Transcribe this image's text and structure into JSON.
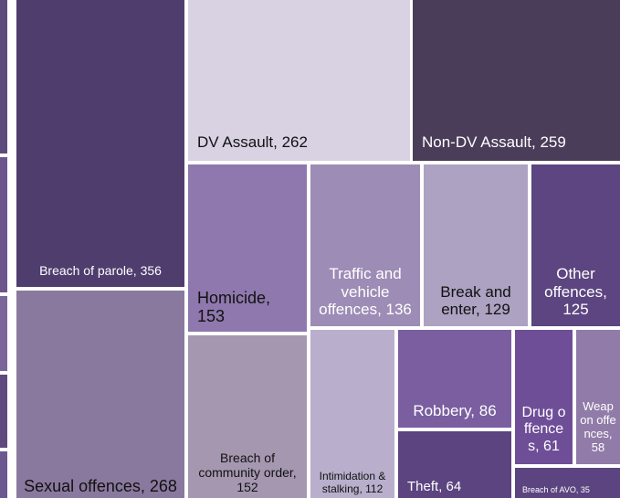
{
  "chart_data": {
    "type": "treemap",
    "value_labels": [
      "Breach of parole, 356",
      "Sexual offences, 268",
      "DV Assault, 262",
      "Non-DV Assault, 259",
      "Homicide, 153",
      "Breach of community order, 152",
      "Traffic and vehicle offences, 136",
      "Break and enter, 129",
      "Other offences, 125",
      "Intimidation & stalking, 112",
      "Robbery, 86",
      "Theft, 64",
      "Drug offences, 61",
      "Weapon offences, 58",
      "Breach of AVO, 35"
    ],
    "values": [
      356,
      268,
      262,
      259,
      153,
      152,
      136,
      129,
      125,
      112,
      86,
      64,
      61,
      58,
      35
    ],
    "colors": [
      "#4f3d6e",
      "#8a799e",
      "#d8d2e3",
      "#4a3d5a",
      "#8f78ad",
      "#a597b0",
      "#9d8cb5",
      "#ada2c2",
      "#5c4580",
      "#b9afcc",
      "#7a5ea0",
      "#5b4480",
      "#6f4e98",
      "#917ba8",
      "#5b4480"
    ]
  }
}
